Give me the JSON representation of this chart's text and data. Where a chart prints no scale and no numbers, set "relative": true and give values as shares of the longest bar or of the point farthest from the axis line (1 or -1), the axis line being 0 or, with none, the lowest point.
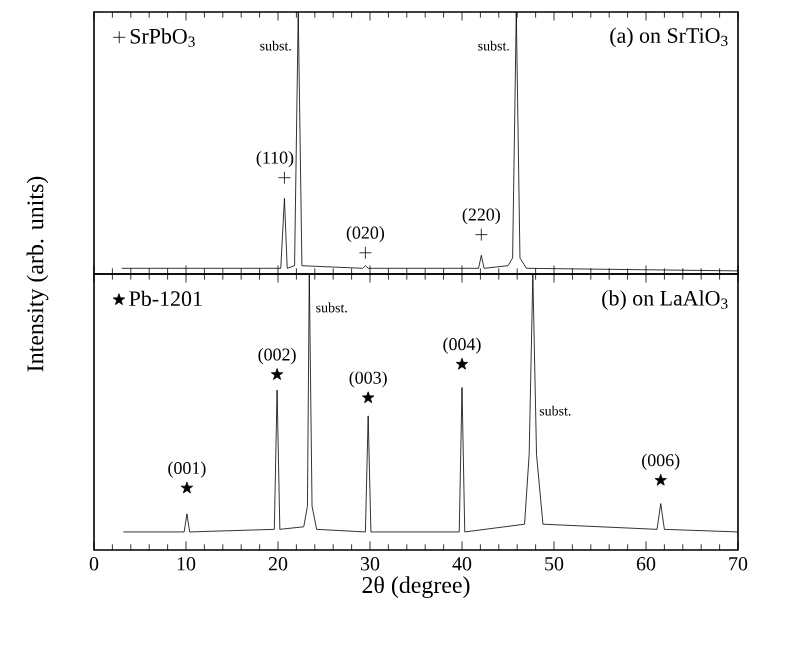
{
  "chart_data": [
    {
      "type": "line",
      "title": "(a)  on SrTiO$_{3}$",
      "relative": true,
      "xlim": [
        0,
        70
      ],
      "xticks": [
        0,
        10,
        20,
        30,
        40,
        50,
        60,
        70
      ],
      "tick_labels": false,
      "legend": "top left",
      "series": [
        {
          "color": "#000000",
          "x": [
            3,
            20.3,
            20.7,
            21.0,
            21.8,
            22.2,
            22.6,
            29.2,
            29.5,
            29.8,
            41.8,
            42.1,
            42.4,
            45.0,
            45.5,
            45.9,
            46.3,
            47.0,
            70
          ],
          "values": [
            0.01,
            0.01,
            0.28,
            0.01,
            0.02,
            1,
            0.02,
            0.01,
            0.02,
            0.01,
            0.01,
            0.06,
            0.01,
            0.02,
            0.05,
            1,
            0.05,
            0.01,
            0
          ]
        },
        {
          "type": "scatter",
          "name": "SrPbO$_{3}$",
          "color": "#000000",
          "marker": "cross",
          "x": [
            20.7,
            29.5,
            42.1
          ],
          "values": [
            0.36,
            0.07,
            0.14
          ]
        }
      ],
      "annotations": [
        "(110)",
        "(020)",
        "(220)",
        "subst.",
        "subst."
      ]
    },
    {
      "type": "line",
      "title": "(b)  on LaAlO$_{3}$",
      "relative": true,
      "xlim": [
        0,
        70
      ],
      "xticks": [
        0,
        10,
        20,
        30,
        40,
        50,
        60,
        70
      ],
      "tick_labels": "x",
      "legend": "top left",
      "xlabel": "2θ (degree)",
      "ylabel": "Intensity (arb. units)",
      "series": [
        {
          "color": "#000000",
          "x": [
            3.2,
            9.8,
            10.1,
            10.4,
            19.6,
            19.9,
            20.2,
            22.8,
            23.2,
            23.4,
            23.7,
            24.2,
            29.5,
            29.8,
            30.1,
            39.7,
            40.0,
            40.3,
            46.8,
            47.3,
            47.7,
            48.1,
            48.8,
            61.2,
            61.6,
            62.0,
            70
          ],
          "values": [
            0,
            0,
            0.07,
            0,
            0.01,
            0.55,
            0.01,
            0.02,
            0.1,
            1,
            0.1,
            0.01,
            0,
            0.45,
            0,
            0,
            0.56,
            0,
            0.03,
            0.3,
            1,
            0.3,
            0.03,
            0.01,
            0.11,
            0.01,
            0
          ]
        },
        {
          "type": "scatter",
          "name": "Pb-1201",
          "color": "#000000",
          "marker": "star",
          "x": [
            10.1,
            19.9,
            29.8,
            40.0,
            61.6
          ],
          "values": [
            0.17,
            0.61,
            0.52,
            0.65,
            0.2
          ]
        }
      ],
      "annotations": [
        "(001)",
        "(002)",
        "(003)",
        "(004)",
        "(006)",
        "subst.",
        "subst."
      ]
    }
  ]
}
